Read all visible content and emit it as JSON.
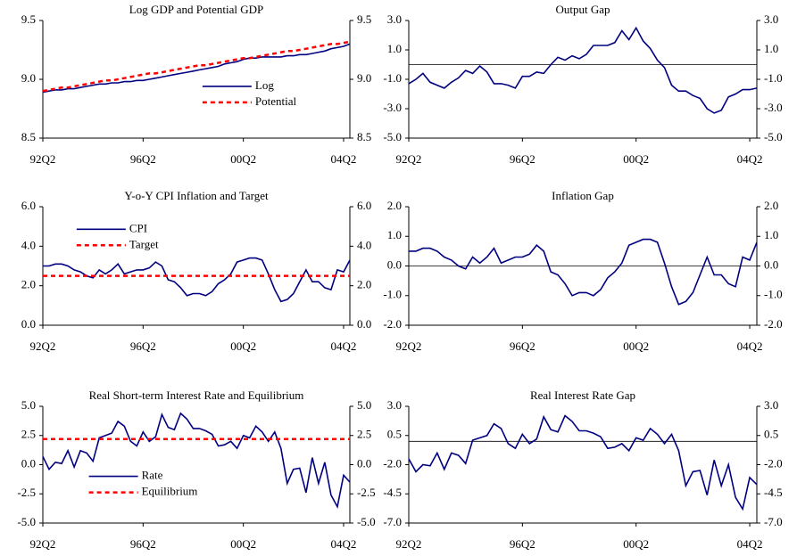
{
  "chart_data": [
    {
      "type": "line",
      "title": "Log GDP and Potential GDP",
      "categories": [
        "92Q2",
        null,
        null,
        null,
        null,
        null,
        null,
        null,
        null,
        null,
        null,
        null,
        null,
        null,
        null,
        null,
        "96Q2",
        null,
        null,
        null,
        null,
        null,
        null,
        null,
        null,
        null,
        null,
        null,
        null,
        null,
        null,
        null,
        "00Q2",
        null,
        null,
        null,
        null,
        null,
        null,
        null,
        null,
        null,
        null,
        null,
        null,
        null,
        null,
        null,
        "04Q2",
        null
      ],
      "series": [
        {
          "name": "Log",
          "color": "#000080",
          "values": [
            8.89,
            8.9,
            8.91,
            8.91,
            8.92,
            8.92,
            8.93,
            8.94,
            8.95,
            8.96,
            8.96,
            8.97,
            8.97,
            8.98,
            8.98,
            8.99,
            8.99,
            9.0,
            9.01,
            9.02,
            9.03,
            9.04,
            9.05,
            9.06,
            9.07,
            9.08,
            9.09,
            9.1,
            9.11,
            9.13,
            9.14,
            9.15,
            9.17,
            9.18,
            9.18,
            9.19,
            9.19,
            9.19,
            9.19,
            9.2,
            9.2,
            9.21,
            9.21,
            9.22,
            9.23,
            9.24,
            9.26,
            9.27,
            9.28,
            9.3
          ]
        },
        {
          "name": "Potential",
          "color": "#ff0000",
          "dashed": true,
          "values": [
            8.9,
            8.91,
            8.92,
            8.93,
            8.93,
            8.94,
            8.95,
            8.96,
            8.97,
            8.98,
            8.99,
            8.99,
            9.0,
            9.01,
            9.02,
            9.03,
            9.04,
            9.05,
            9.05,
            9.06,
            9.07,
            9.08,
            9.09,
            9.1,
            9.11,
            9.12,
            9.12,
            9.13,
            9.14,
            9.15,
            9.16,
            9.17,
            9.18,
            9.18,
            9.19,
            9.2,
            9.21,
            9.22,
            9.23,
            9.24,
            9.24,
            9.25,
            9.26,
            9.27,
            9.28,
            9.29,
            9.3,
            9.3,
            9.31,
            9.32
          ]
        }
      ],
      "ylim": [
        8.5,
        9.5
      ],
      "yticks": [
        8.5,
        {
          "value": 9,
          "label": "9.0"
        },
        9.5
      ],
      "legend": "center-right"
    },
    {
      "type": "line",
      "title": "Output Gap",
      "categories": [
        "92Q2",
        null,
        null,
        null,
        null,
        null,
        null,
        null,
        null,
        null,
        null,
        null,
        null,
        null,
        null,
        null,
        "96Q2",
        null,
        null,
        null,
        null,
        null,
        null,
        null,
        null,
        null,
        null,
        null,
        null,
        null,
        null,
        null,
        "00Q2",
        null,
        null,
        null,
        null,
        null,
        null,
        null,
        null,
        null,
        null,
        null,
        null,
        null,
        null,
        null,
        "04Q2",
        null
      ],
      "series": [
        {
          "color": "#000080",
          "values": [
            -1.3,
            -1.0,
            -0.6,
            -1.2,
            -1.4,
            -1.6,
            -1.2,
            -0.9,
            -0.4,
            -0.6,
            -0.1,
            -0.5,
            -1.3,
            -1.3,
            -1.4,
            -1.6,
            -0.8,
            -0.8,
            -0.5,
            -0.6,
            0.0,
            0.5,
            0.3,
            0.6,
            0.4,
            0.7,
            1.3,
            1.3,
            1.3,
            1.5,
            2.3,
            1.7,
            2.5,
            1.6,
            1.1,
            0.3,
            -0.2,
            -1.4,
            -1.8,
            -1.8,
            -2.1,
            -2.3,
            -3.0,
            -3.3,
            -3.1,
            -2.2,
            -2.0,
            -1.7,
            -1.7,
            -1.6
          ]
        }
      ],
      "ylim": [
        -5,
        3
      ],
      "yticks": [
        {
          "value": -5,
          "label": "-5.0"
        },
        {
          "value": -3,
          "label": "-3.0"
        },
        {
          "value": -1,
          "label": "-1.0"
        },
        {
          "value": 1,
          "label": "1.0"
        },
        {
          "value": 3,
          "label": "3.0"
        }
      ],
      "zero_line": true
    },
    {
      "type": "line",
      "title": "Y-o-Y CPI Inflation and Target",
      "categories": [
        "92Q2",
        null,
        null,
        null,
        null,
        null,
        null,
        null,
        null,
        null,
        null,
        null,
        null,
        null,
        null,
        null,
        "96Q2",
        null,
        null,
        null,
        null,
        null,
        null,
        null,
        null,
        null,
        null,
        null,
        null,
        null,
        null,
        null,
        "00Q2",
        null,
        null,
        null,
        null,
        null,
        null,
        null,
        null,
        null,
        null,
        null,
        null,
        null,
        null,
        null,
        "04Q2",
        null
      ],
      "series": [
        {
          "name": "CPI",
          "color": "#000080",
          "values": [
            3.0,
            3.0,
            3.1,
            3.1,
            3.0,
            2.8,
            2.7,
            2.5,
            2.4,
            2.8,
            2.6,
            2.8,
            3.1,
            2.6,
            2.7,
            2.8,
            2.8,
            2.9,
            3.2,
            3.0,
            2.3,
            2.2,
            1.9,
            1.5,
            1.6,
            1.6,
            1.5,
            1.7,
            2.1,
            2.3,
            2.6,
            3.2,
            3.3,
            3.4,
            3.4,
            3.3,
            2.6,
            1.8,
            1.2,
            1.3,
            1.6,
            2.2,
            2.8,
            2.2,
            2.2,
            1.9,
            1.8,
            2.8,
            2.7,
            3.3
          ]
        },
        {
          "name": "Target",
          "color": "#ff0000",
          "dashed": true,
          "values": [
            2.5,
            2.5,
            2.5,
            2.5,
            2.5,
            2.5,
            2.5,
            2.5,
            2.5,
            2.5,
            2.5,
            2.5,
            2.5,
            2.5,
            2.5,
            2.5,
            2.5,
            2.5,
            2.5,
            2.5,
            2.5,
            2.5,
            2.5,
            2.5,
            2.5,
            2.5,
            2.5,
            2.5,
            2.5,
            2.5,
            2.5,
            2.5,
            2.5,
            2.5,
            2.5,
            2.5,
            2.5,
            2.5,
            2.5,
            2.5,
            2.5,
            2.5,
            2.5,
            2.5,
            2.5,
            2.5,
            2.5,
            2.5,
            2.5,
            2.5
          ]
        }
      ],
      "ylim": [
        0,
        6
      ],
      "yticks": [
        {
          "value": 0,
          "label": "0.0"
        },
        {
          "value": 2,
          "label": "2.0"
        },
        {
          "value": 4,
          "label": "4.0"
        },
        {
          "value": 6,
          "label": "6.0"
        }
      ],
      "legend": "upper-left"
    },
    {
      "type": "line",
      "title": "Inflation Gap",
      "categories": [
        "92Q2",
        null,
        null,
        null,
        null,
        null,
        null,
        null,
        null,
        null,
        null,
        null,
        null,
        null,
        null,
        null,
        "96Q2",
        null,
        null,
        null,
        null,
        null,
        null,
        null,
        null,
        null,
        null,
        null,
        null,
        null,
        null,
        null,
        "00Q2",
        null,
        null,
        null,
        null,
        null,
        null,
        null,
        null,
        null,
        null,
        null,
        null,
        null,
        null,
        null,
        "04Q2",
        null
      ],
      "series": [
        {
          "color": "#000080",
          "values": [
            0.5,
            0.5,
            0.6,
            0.6,
            0.5,
            0.3,
            0.2,
            0.0,
            -0.1,
            0.3,
            0.1,
            0.3,
            0.6,
            0.1,
            0.2,
            0.3,
            0.3,
            0.4,
            0.7,
            0.5,
            -0.2,
            -0.3,
            -0.6,
            -1.0,
            -0.9,
            -0.9,
            -1.0,
            -0.8,
            -0.4,
            -0.2,
            0.1,
            0.7,
            0.8,
            0.9,
            0.9,
            0.8,
            0.1,
            -0.7,
            -1.3,
            -1.2,
            -0.9,
            -0.3,
            0.3,
            -0.3,
            -0.3,
            -0.6,
            -0.7,
            0.3,
            0.2,
            0.8
          ]
        }
      ],
      "ylim": [
        -2,
        2
      ],
      "yticks": [
        {
          "value": -2,
          "label": "-2.0"
        },
        {
          "value": -1,
          "label": "-1.0"
        },
        {
          "value": 0,
          "label": "0.0"
        },
        {
          "value": 1,
          "label": "1.0"
        },
        {
          "value": 2,
          "label": "2.0"
        }
      ],
      "zero_line": true
    },
    {
      "type": "line",
      "title": "Real Short-term Interest Rate and Equilibrium",
      "categories": [
        "92Q2",
        null,
        null,
        null,
        null,
        null,
        null,
        null,
        null,
        null,
        null,
        null,
        null,
        null,
        null,
        null,
        "96Q2",
        null,
        null,
        null,
        null,
        null,
        null,
        null,
        null,
        null,
        null,
        null,
        null,
        null,
        null,
        null,
        "00Q2",
        null,
        null,
        null,
        null,
        null,
        null,
        null,
        null,
        null,
        null,
        null,
        null,
        null,
        null,
        null,
        "04Q2",
        null
      ],
      "series": [
        {
          "name": "Rate",
          "color": "#000080",
          "values": [
            0.7,
            -0.4,
            0.2,
            0.1,
            1.2,
            -0.2,
            1.2,
            1.0,
            0.3,
            2.3,
            2.5,
            2.7,
            3.7,
            3.3,
            2.0,
            1.6,
            2.8,
            2.0,
            2.4,
            4.3,
            3.2,
            3.0,
            4.4,
            3.9,
            3.1,
            3.1,
            2.9,
            2.6,
            1.6,
            1.7,
            2.0,
            1.4,
            2.5,
            2.3,
            3.3,
            2.8,
            2.0,
            2.8,
            1.4,
            -1.6,
            -0.4,
            -0.3,
            -2.4,
            0.6,
            -1.6,
            0.2,
            -2.6,
            -3.6,
            -0.9,
            -1.5
          ]
        },
        {
          "name": "Equilibrium",
          "color": "#ff0000",
          "dashed": true,
          "values": [
            2.2,
            2.2,
            2.2,
            2.2,
            2.2,
            2.2,
            2.2,
            2.2,
            2.2,
            2.2,
            2.2,
            2.2,
            2.2,
            2.2,
            2.2,
            2.2,
            2.2,
            2.2,
            2.2,
            2.2,
            2.2,
            2.2,
            2.2,
            2.2,
            2.2,
            2.2,
            2.2,
            2.2,
            2.2,
            2.2,
            2.2,
            2.2,
            2.2,
            2.2,
            2.2,
            2.2,
            2.2,
            2.2,
            2.2,
            2.2,
            2.2,
            2.2,
            2.2,
            2.2,
            2.2,
            2.2,
            2.2,
            2.2,
            2.2,
            2.2
          ]
        }
      ],
      "ylim": [
        -5,
        5
      ],
      "yticks": [
        {
          "value": -5,
          "label": "-5.0"
        },
        -2.5,
        {
          "value": 0,
          "label": "0.0"
        },
        2.5,
        {
          "value": 5,
          "label": "5.0"
        }
      ],
      "legend": "lower-left"
    },
    {
      "type": "line",
      "title": "Real Interest Rate Gap",
      "categories": [
        "92Q2",
        null,
        null,
        null,
        null,
        null,
        null,
        null,
        null,
        null,
        null,
        null,
        null,
        null,
        null,
        null,
        "96Q2",
        null,
        null,
        null,
        null,
        null,
        null,
        null,
        null,
        null,
        null,
        null,
        null,
        null,
        null,
        null,
        "00Q2",
        null,
        null,
        null,
        null,
        null,
        null,
        null,
        null,
        null,
        null,
        null,
        null,
        null,
        null,
        null,
        "04Q2",
        null
      ],
      "series": [
        {
          "color": "#000080",
          "values": [
            -1.5,
            -2.6,
            -2.0,
            -2.1,
            -1.0,
            -2.4,
            -1.0,
            -1.2,
            -1.9,
            0.1,
            0.3,
            0.5,
            1.5,
            1.1,
            -0.2,
            -0.6,
            0.6,
            -0.2,
            0.2,
            2.1,
            1.0,
            0.8,
            2.2,
            1.7,
            0.9,
            0.9,
            0.7,
            0.4,
            -0.6,
            -0.5,
            -0.2,
            -0.8,
            0.3,
            0.1,
            1.1,
            0.6,
            -0.2,
            0.6,
            -0.8,
            -3.8,
            -2.6,
            -2.5,
            -4.6,
            -1.6,
            -3.8,
            -2.0,
            -4.8,
            -5.8,
            -3.1,
            -3.7
          ]
        }
      ],
      "ylim": [
        -7,
        3
      ],
      "yticks": [
        {
          "value": -7,
          "label": "-7.0"
        },
        -4.5,
        {
          "value": -2,
          "label": "-2.0"
        },
        0.5,
        {
          "value": 3,
          "label": "3.0"
        }
      ],
      "zero_line": true
    }
  ]
}
